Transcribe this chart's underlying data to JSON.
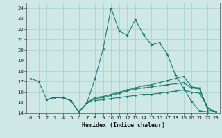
{
  "xlabel": "Humidex (Indice chaleur)",
  "xlim": [
    -0.5,
    23.5
  ],
  "ylim": [
    14,
    24.5
  ],
  "yticks": [
    14,
    15,
    16,
    17,
    18,
    19,
    20,
    21,
    22,
    23,
    24
  ],
  "xticks": [
    0,
    1,
    2,
    3,
    4,
    5,
    6,
    7,
    8,
    9,
    10,
    11,
    12,
    13,
    14,
    15,
    16,
    17,
    18,
    19,
    20,
    21,
    22,
    23
  ],
  "background_color": "#cde8e5",
  "grid_color": "#aacfcc",
  "line_color": "#1a7a6e",
  "lines": [
    {
      "x": [
        0,
        1,
        2,
        3,
        4,
        5,
        6,
        7,
        8,
        9,
        10,
        11,
        12,
        13,
        14,
        15,
        16,
        17,
        18,
        19,
        20,
        21,
        22,
        23
      ],
      "y": [
        17.3,
        17.0,
        15.3,
        15.5,
        15.5,
        15.2,
        14.1,
        15.0,
        17.3,
        20.1,
        24.0,
        21.8,
        21.4,
        22.9,
        21.5,
        20.5,
        20.7,
        19.6,
        17.6,
        16.4,
        15.1,
        14.2,
        14.1,
        14.1
      ],
      "marker": true
    },
    {
      "x": [
        2,
        3,
        4,
        5,
        6,
        7,
        8,
        9,
        10,
        11,
        12,
        13,
        14,
        15,
        16,
        17,
        18,
        19,
        20,
        21,
        22,
        23
      ],
      "y": [
        15.3,
        15.5,
        15.5,
        15.2,
        14.1,
        15.0,
        15.5,
        15.6,
        15.8,
        16.0,
        16.2,
        16.4,
        16.6,
        16.7,
        16.9,
        17.1,
        17.3,
        17.5,
        16.5,
        16.4,
        14.3,
        14.1
      ],
      "marker": false
    },
    {
      "x": [
        2,
        3,
        4,
        5,
        6,
        7,
        8,
        9,
        10,
        11,
        12,
        13,
        14,
        15,
        16,
        17,
        18,
        19,
        20,
        21,
        22,
        23
      ],
      "y": [
        15.3,
        15.5,
        15.5,
        15.2,
        14.1,
        15.0,
        15.4,
        15.5,
        15.7,
        15.9,
        16.1,
        16.3,
        16.4,
        16.5,
        16.6,
        16.7,
        16.8,
        16.9,
        16.4,
        16.3,
        14.5,
        14.1
      ],
      "marker": false
    },
    {
      "x": [
        2,
        3,
        4,
        5,
        6,
        7,
        8,
        9,
        10,
        11,
        12,
        13,
        14,
        15,
        16,
        17,
        18,
        19,
        20,
        21,
        22,
        23
      ],
      "y": [
        15.3,
        15.5,
        15.5,
        15.2,
        14.1,
        15.0,
        15.2,
        15.3,
        15.4,
        15.5,
        15.6,
        15.7,
        15.8,
        15.8,
        15.9,
        16.0,
        16.1,
        16.2,
        16.0,
        15.9,
        14.5,
        14.1
      ],
      "marker": false
    }
  ]
}
